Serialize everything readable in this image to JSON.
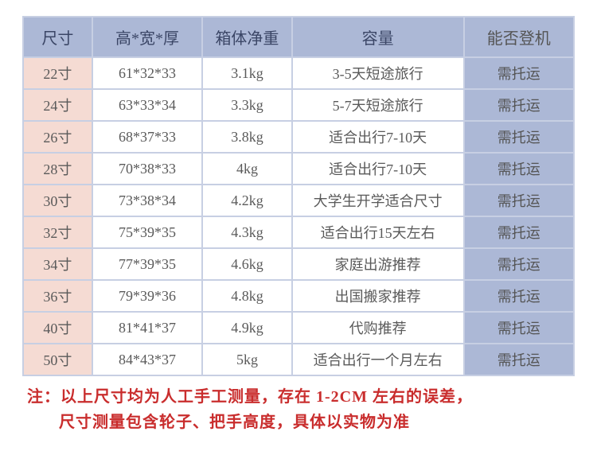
{
  "table": {
    "headers": {
      "size": "尺寸",
      "dim": "高*宽*厚",
      "weight": "箱体净重",
      "capacity": "容量",
      "boarding": "能否登机"
    },
    "rows": [
      {
        "size": "22寸",
        "dim": "61*32*33",
        "weight": "3.1kg",
        "capacity": "3-5天短途旅行",
        "boarding": "需托运"
      },
      {
        "size": "24寸",
        "dim": "63*33*34",
        "weight": "3.3kg",
        "capacity": "5-7天短途旅行",
        "boarding": "需托运"
      },
      {
        "size": "26寸",
        "dim": "68*37*33",
        "weight": "3.8kg",
        "capacity": "适合出行7-10天",
        "boarding": "需托运"
      },
      {
        "size": "28寸",
        "dim": "70*38*33",
        "weight": "4kg",
        "capacity": "适合出行7-10天",
        "boarding": "需托运"
      },
      {
        "size": "30寸",
        "dim": "73*38*34",
        "weight": "4.2kg",
        "capacity": "大学生开学适合尺寸",
        "boarding": "需托运"
      },
      {
        "size": "32寸",
        "dim": "75*39*35",
        "weight": "4.3kg",
        "capacity": "适合出行15天左右",
        "boarding": "需托运"
      },
      {
        "size": "34寸",
        "dim": "77*39*35",
        "weight": "4.6kg",
        "capacity": "家庭出游推荐",
        "boarding": "需托运"
      },
      {
        "size": "36寸",
        "dim": "79*39*36",
        "weight": "4.8kg",
        "capacity": "出国搬家推荐",
        "boarding": "需托运"
      },
      {
        "size": "40寸",
        "dim": "81*41*37",
        "weight": "4.9kg",
        "capacity": "代购推荐",
        "boarding": "需托运"
      },
      {
        "size": "50寸",
        "dim": "84*43*37",
        "weight": "5kg",
        "capacity": "适合出行一个月左右",
        "boarding": "需托运"
      }
    ]
  },
  "note": {
    "line1": "注：以上尺寸均为人工手工测量，存在 1-2CM 左右的误差，",
    "line2": "尺寸测量包含轮子、把手高度，具体以实物为准"
  },
  "style": {
    "header_bg": "#acb8d6",
    "size_col_bg": "#f5dbd3",
    "board_col_bg": "#acb8d6",
    "border_color": "#c7cfe3",
    "note_color": "#c92d2d",
    "text_color": "#5a5a5a",
    "header_text_color": "#3b4666",
    "font_size_cell": 18,
    "font_size_header": 20,
    "font_size_note": 20
  }
}
